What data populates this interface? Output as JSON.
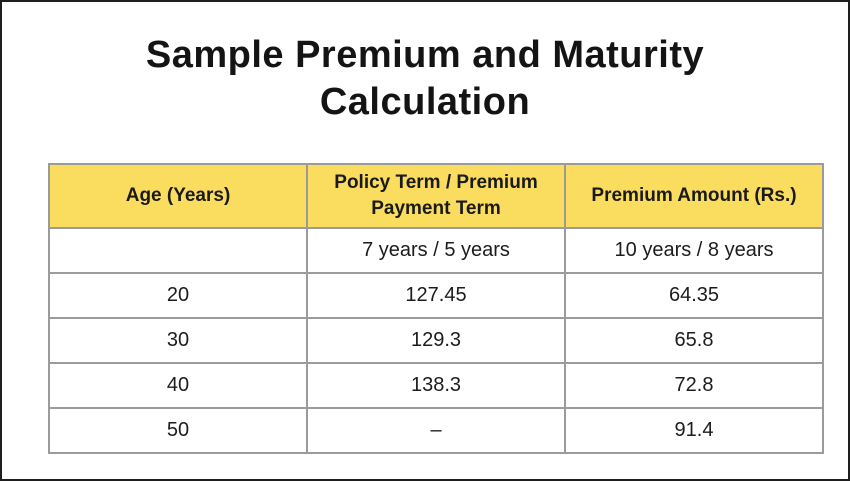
{
  "page": {
    "title": "Sample Premium and Maturity Calculation"
  },
  "colors": {
    "header_bg": "#FADC5F",
    "table_border": "#9B9B9B",
    "outer_border": "#1E1E1E",
    "text": "#1A1A1A",
    "background": "#FFFFFF"
  },
  "table": {
    "columns": [
      "Age (Years)",
      "Policy Term / Premium Payment Term",
      "Premium Amount (Rs.)"
    ],
    "subheader": [
      "",
      "7 years / 5 years",
      "10 years / 8 years"
    ],
    "rows": [
      [
        "20",
        "127.45",
        "64.35"
      ],
      [
        "30",
        "129.3",
        "65.8"
      ],
      [
        "40",
        "138.3",
        "72.8"
      ],
      [
        "50",
        "–",
        "91.4"
      ]
    ]
  },
  "chart_data": {
    "type": "table",
    "title": "Sample Premium and Maturity Calculation",
    "columns": [
      "Age (Years)",
      "Policy Term / Premium Payment Term: 7 years / 5 years",
      "Premium Amount (Rs.): 10 years / 8 years"
    ],
    "ages": [
      20,
      30,
      40,
      50
    ],
    "premium_7y_5y": [
      127.45,
      129.3,
      138.3,
      null
    ],
    "premium_10y_8y": [
      64.35,
      65.8,
      72.8,
      91.4
    ]
  }
}
